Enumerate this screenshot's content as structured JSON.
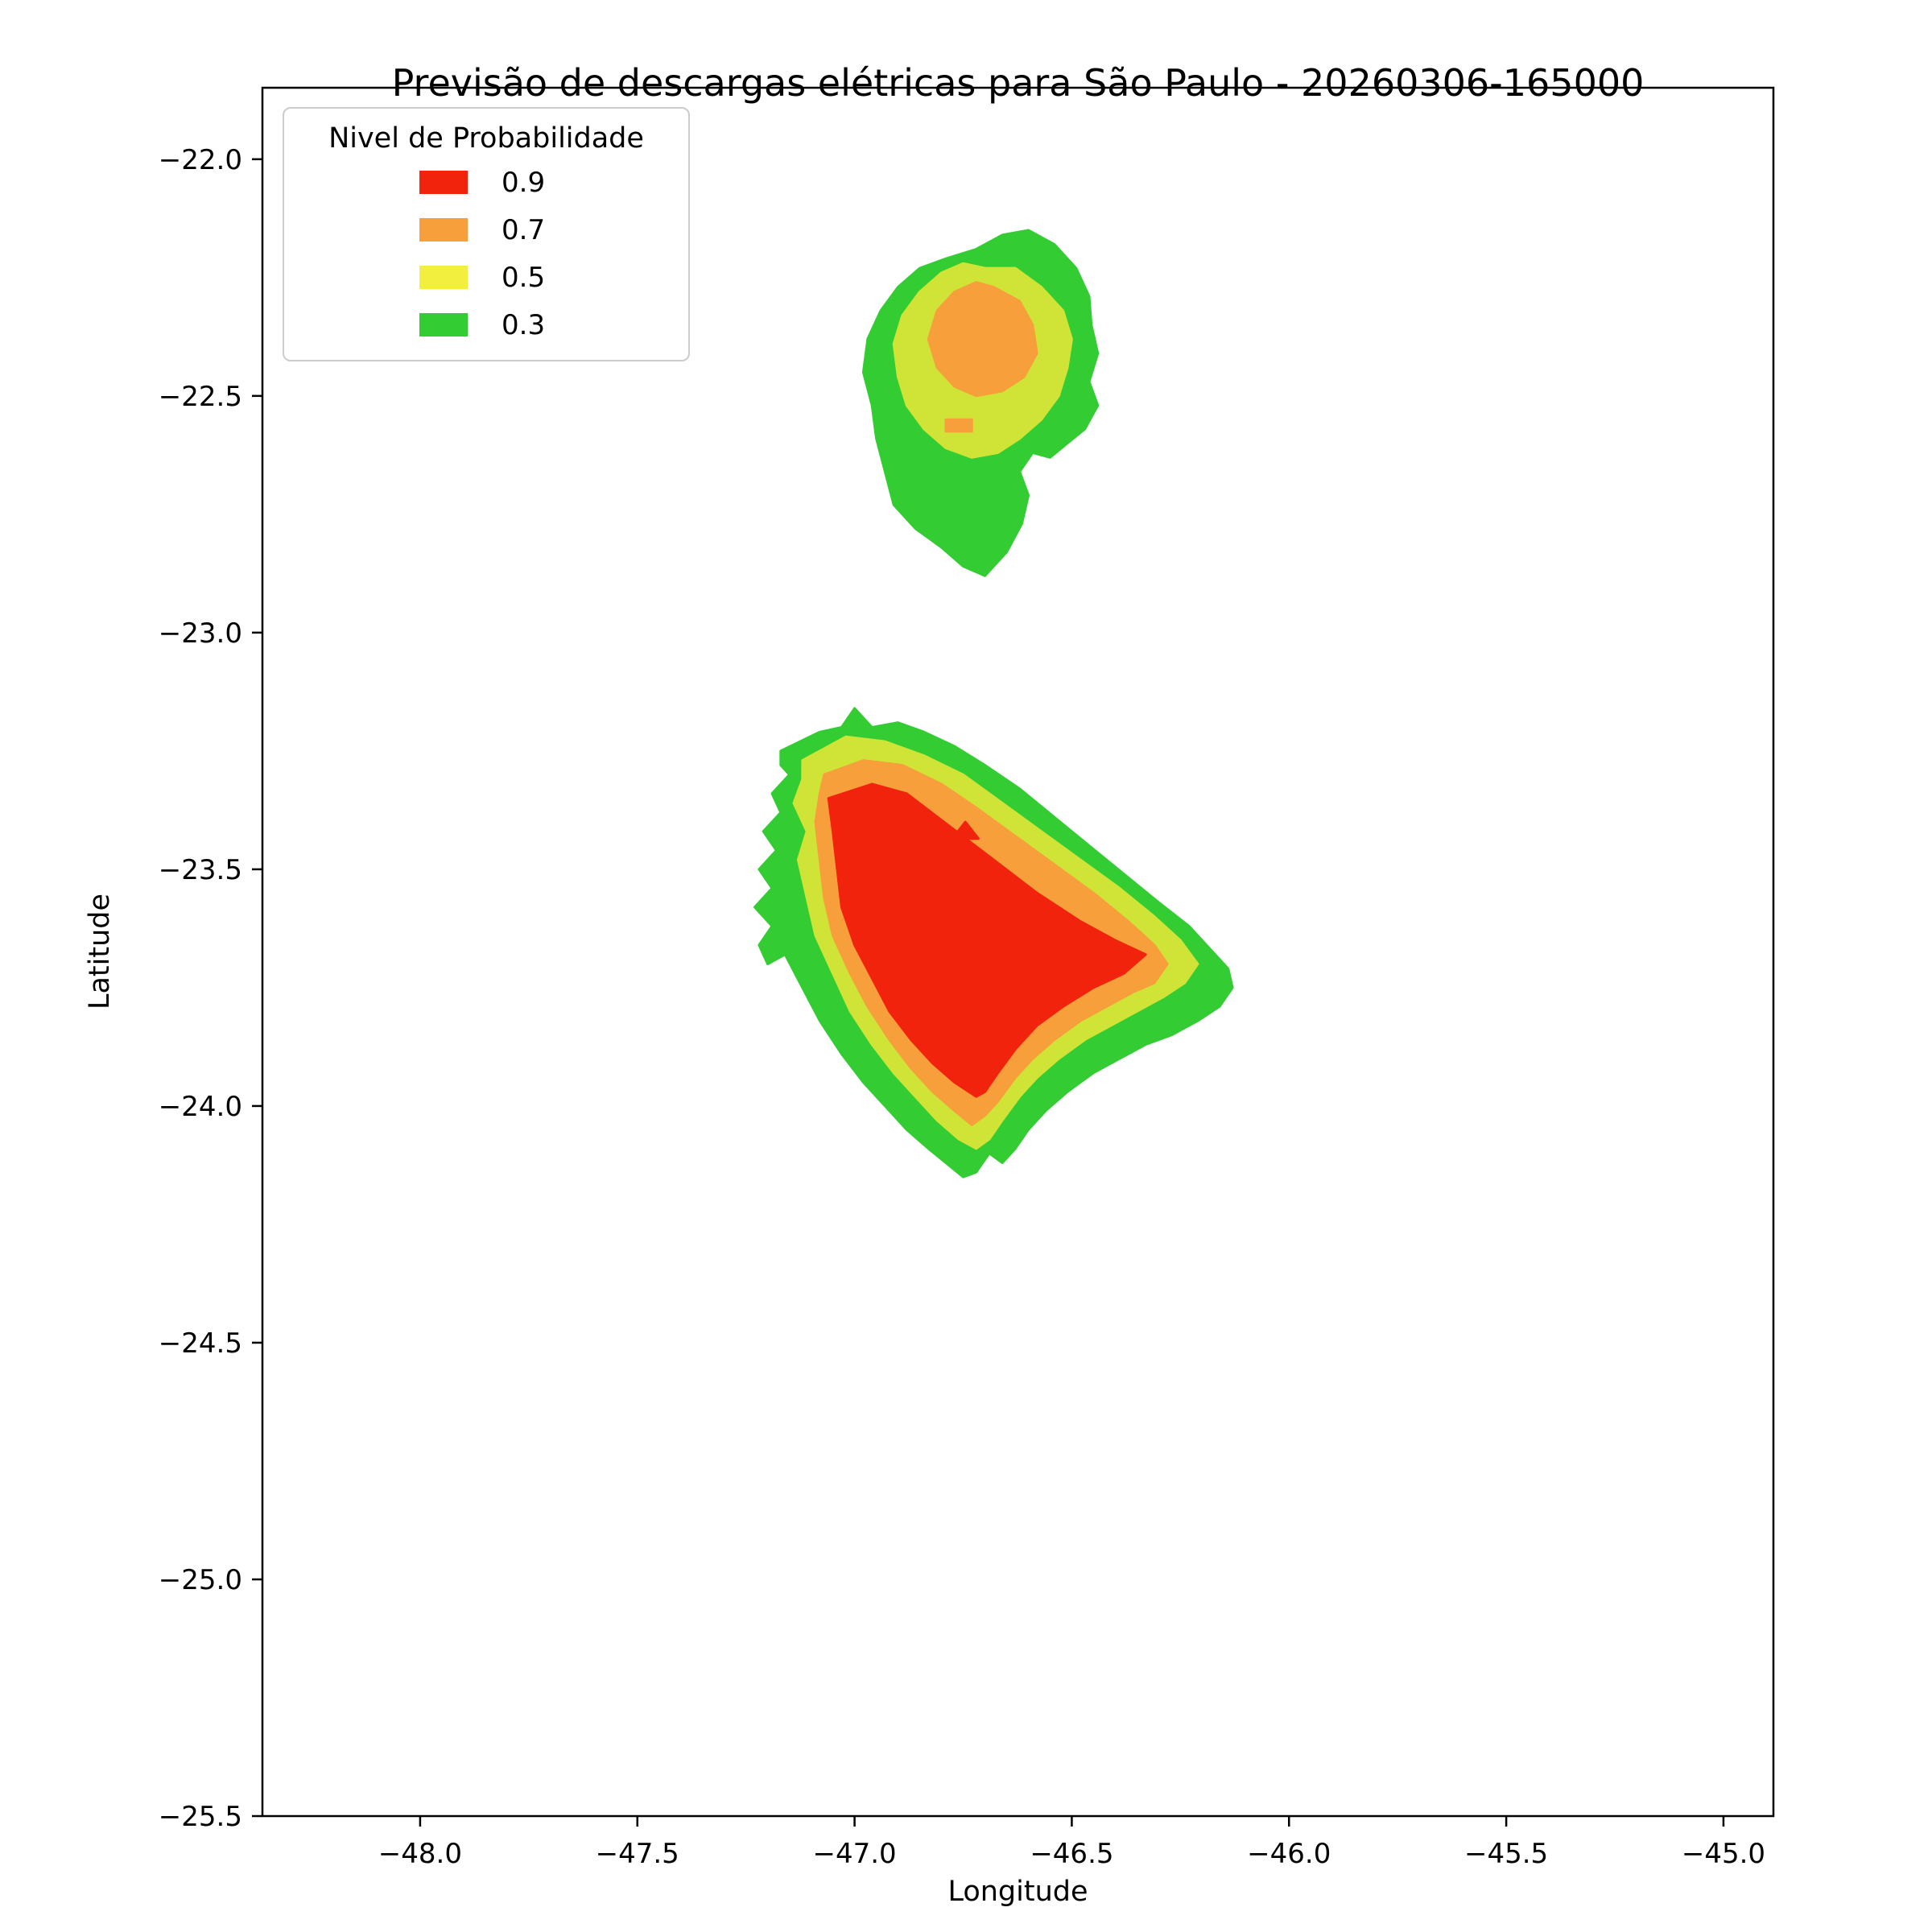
{
  "chart_data": {
    "type": "contour",
    "title": "Previsão de descargas elétricas para São Paulo - 20260306-165000",
    "xlabel": "Longitude",
    "ylabel": "Latitude",
    "xlim": [
      -48.363,
      -44.885
    ],
    "ylim": [
      -25.5,
      -21.849
    ],
    "grid": false,
    "background_color": "#ffffff",
    "axis_color": "#000000",
    "xticks": {
      "values": [
        -48.0,
        -47.5,
        -47.0,
        -46.5,
        -46.0,
        -45.5,
        -45.0
      ],
      "labels": [
        "−48.0",
        "−47.5",
        "−47.0",
        "−46.5",
        "−46.0",
        "−45.5",
        "−45.0"
      ]
    },
    "yticks": {
      "values": [
        -22.0,
        -22.5,
        -23.0,
        -23.5,
        -24.0,
        -24.5,
        -25.0,
        -25.5
      ],
      "labels": [
        "−22.0",
        "−22.5",
        "−23.0",
        "−23.5",
        "−24.0",
        "−24.5",
        "−25.0",
        "−25.5"
      ]
    },
    "levels": [
      0.3,
      0.5,
      0.7,
      0.9
    ],
    "legend": {
      "title": "Nivel de Probabilidade",
      "position": "upper left",
      "entries": [
        {
          "label": "0.9",
          "color": "#f2230d"
        },
        {
          "label": "0.7",
          "color": "#f79f3a"
        },
        {
          "label": "0.5",
          "color": "#f2ef3f"
        },
        {
          "label": "0.3",
          "color": "#33cc33"
        }
      ]
    },
    "regions": [
      {
        "name": "north-cell-level-0.3",
        "level": 0.3,
        "color": "#33cc33",
        "points": [
          [
            -46.72,
            -22.19
          ],
          [
            -46.66,
            -22.16
          ],
          [
            -46.6,
            -22.15
          ],
          [
            -46.54,
            -22.18
          ],
          [
            -46.49,
            -22.23
          ],
          [
            -46.46,
            -22.29
          ],
          [
            -46.455,
            -22.35
          ],
          [
            -46.44,
            -22.41
          ],
          [
            -46.46,
            -22.47
          ],
          [
            -46.44,
            -22.52
          ],
          [
            -46.47,
            -22.57
          ],
          [
            -46.51,
            -22.6
          ],
          [
            -46.55,
            -22.63
          ],
          [
            -46.59,
            -22.62
          ],
          [
            -46.62,
            -22.66
          ],
          [
            -46.6,
            -22.71
          ],
          [
            -46.615,
            -22.77
          ],
          [
            -46.65,
            -22.83
          ],
          [
            -46.7,
            -22.88
          ],
          [
            -46.75,
            -22.86
          ],
          [
            -46.8,
            -22.82
          ],
          [
            -46.86,
            -22.78
          ],
          [
            -46.91,
            -22.73
          ],
          [
            -46.93,
            -22.66
          ],
          [
            -46.95,
            -22.59
          ],
          [
            -46.96,
            -22.52
          ],
          [
            -46.98,
            -22.45
          ],
          [
            -46.97,
            -22.38
          ],
          [
            -46.94,
            -22.32
          ],
          [
            -46.9,
            -22.27
          ],
          [
            -46.85,
            -22.23
          ],
          [
            -46.79,
            -22.21
          ]
        ]
      },
      {
        "name": "north-cell-level-0.5",
        "level": 0.5,
        "color": "#d0e437",
        "points": [
          [
            -46.7,
            -22.23
          ],
          [
            -46.63,
            -22.23
          ],
          [
            -46.57,
            -22.27
          ],
          [
            -46.52,
            -22.32
          ],
          [
            -46.5,
            -22.38
          ],
          [
            -46.51,
            -22.44
          ],
          [
            -46.53,
            -22.5
          ],
          [
            -46.57,
            -22.55
          ],
          [
            -46.62,
            -22.59
          ],
          [
            -46.67,
            -22.62
          ],
          [
            -46.73,
            -22.63
          ],
          [
            -46.79,
            -22.61
          ],
          [
            -46.84,
            -22.57
          ],
          [
            -46.88,
            -22.52
          ],
          [
            -46.9,
            -22.46
          ],
          [
            -46.91,
            -22.39
          ],
          [
            -46.89,
            -22.33
          ],
          [
            -46.85,
            -22.28
          ],
          [
            -46.8,
            -22.24
          ],
          [
            -46.75,
            -22.22
          ]
        ]
      },
      {
        "name": "north-cell-level-0.7",
        "level": 0.7,
        "color": "#f79f3a",
        "points": [
          [
            -46.68,
            -22.27
          ],
          [
            -46.62,
            -22.3
          ],
          [
            -46.59,
            -22.35
          ],
          [
            -46.58,
            -22.41
          ],
          [
            -46.61,
            -22.46
          ],
          [
            -46.66,
            -22.49
          ],
          [
            -46.72,
            -22.5
          ],
          [
            -46.77,
            -22.48
          ],
          [
            -46.81,
            -22.44
          ],
          [
            -46.83,
            -22.38
          ],
          [
            -46.81,
            -22.32
          ],
          [
            -46.77,
            -22.28
          ],
          [
            -46.72,
            -22.26
          ]
        ]
      },
      {
        "name": "north-cell-level-0.7-sliver",
        "level": 0.7,
        "color": "#f79f3a",
        "points": [
          [
            -46.79,
            -22.55
          ],
          [
            -46.73,
            -22.55
          ],
          [
            -46.73,
            -22.575
          ],
          [
            -46.79,
            -22.575
          ]
        ]
      },
      {
        "name": "south-cell-level-0.3",
        "level": 0.3,
        "color": "#33cc33",
        "points": [
          [
            -47.17,
            -23.25
          ],
          [
            -47.08,
            -23.21
          ],
          [
            -47.03,
            -23.2
          ],
          [
            -47.0,
            -23.16
          ],
          [
            -46.96,
            -23.2
          ],
          [
            -46.9,
            -23.19
          ],
          [
            -46.84,
            -23.21
          ],
          [
            -46.77,
            -23.24
          ],
          [
            -46.7,
            -23.28
          ],
          [
            -46.62,
            -23.33
          ],
          [
            -46.54,
            -23.39
          ],
          [
            -46.46,
            -23.45
          ],
          [
            -46.38,
            -23.51
          ],
          [
            -46.3,
            -23.57
          ],
          [
            -46.23,
            -23.62
          ],
          [
            -46.18,
            -23.67
          ],
          [
            -46.14,
            -23.71
          ],
          [
            -46.13,
            -23.75
          ],
          [
            -46.16,
            -23.79
          ],
          [
            -46.21,
            -23.82
          ],
          [
            -46.27,
            -23.85
          ],
          [
            -46.33,
            -23.87
          ],
          [
            -46.39,
            -23.9
          ],
          [
            -46.45,
            -23.93
          ],
          [
            -46.51,
            -23.97
          ],
          [
            -46.56,
            -24.01
          ],
          [
            -46.6,
            -24.05
          ],
          [
            -46.63,
            -24.09
          ],
          [
            -46.66,
            -24.12
          ],
          [
            -46.69,
            -24.1
          ],
          [
            -46.72,
            -24.14
          ],
          [
            -46.75,
            -24.15
          ],
          [
            -46.79,
            -24.12
          ],
          [
            -46.83,
            -24.09
          ],
          [
            -46.88,
            -24.05
          ],
          [
            -46.93,
            -24.0
          ],
          [
            -46.98,
            -23.95
          ],
          [
            -47.03,
            -23.89
          ],
          [
            -47.08,
            -23.82
          ],
          [
            -47.12,
            -23.75
          ],
          [
            -47.16,
            -23.68
          ],
          [
            -47.2,
            -23.7
          ],
          [
            -47.22,
            -23.66
          ],
          [
            -47.19,
            -23.62
          ],
          [
            -47.23,
            -23.58
          ],
          [
            -47.19,
            -23.54
          ],
          [
            -47.22,
            -23.5
          ],
          [
            -47.18,
            -23.46
          ],
          [
            -47.21,
            -23.42
          ],
          [
            -47.17,
            -23.38
          ],
          [
            -47.19,
            -23.34
          ],
          [
            -47.15,
            -23.3
          ],
          [
            -47.17,
            -23.28
          ]
        ]
      },
      {
        "name": "south-cell-level-0.5",
        "level": 0.5,
        "color": "#d0e437",
        "points": [
          [
            -47.12,
            -23.27
          ],
          [
            -47.02,
            -23.22
          ],
          [
            -46.93,
            -23.23
          ],
          [
            -46.84,
            -23.26
          ],
          [
            -46.75,
            -23.3
          ],
          [
            -46.66,
            -23.36
          ],
          [
            -46.57,
            -23.42
          ],
          [
            -46.48,
            -23.48
          ],
          [
            -46.39,
            -23.54
          ],
          [
            -46.31,
            -23.6
          ],
          [
            -46.25,
            -23.65
          ],
          [
            -46.21,
            -23.7
          ],
          [
            -46.24,
            -23.74
          ],
          [
            -46.29,
            -23.77
          ],
          [
            -46.35,
            -23.8
          ],
          [
            -46.41,
            -23.83
          ],
          [
            -46.47,
            -23.86
          ],
          [
            -46.53,
            -23.9
          ],
          [
            -46.58,
            -23.94
          ],
          [
            -46.62,
            -23.98
          ],
          [
            -46.66,
            -24.03
          ],
          [
            -46.69,
            -24.07
          ],
          [
            -46.72,
            -24.09
          ],
          [
            -46.76,
            -24.07
          ],
          [
            -46.81,
            -24.03
          ],
          [
            -46.86,
            -23.98
          ],
          [
            -46.91,
            -23.93
          ],
          [
            -46.96,
            -23.87
          ],
          [
            -47.01,
            -23.8
          ],
          [
            -47.05,
            -23.72
          ],
          [
            -47.09,
            -23.64
          ],
          [
            -47.11,
            -23.56
          ],
          [
            -47.13,
            -23.48
          ],
          [
            -47.11,
            -23.42
          ],
          [
            -47.14,
            -23.36
          ],
          [
            -47.12,
            -23.31
          ]
        ]
      },
      {
        "name": "south-cell-level-0.7",
        "level": 0.7,
        "color": "#f79f3a",
        "points": [
          [
            -47.07,
            -23.3
          ],
          [
            -46.98,
            -23.27
          ],
          [
            -46.89,
            -23.28
          ],
          [
            -46.8,
            -23.32
          ],
          [
            -46.72,
            -23.37
          ],
          [
            -46.63,
            -23.43
          ],
          [
            -46.54,
            -23.49
          ],
          [
            -46.45,
            -23.55
          ],
          [
            -46.37,
            -23.61
          ],
          [
            -46.31,
            -23.66
          ],
          [
            -46.28,
            -23.7
          ],
          [
            -46.31,
            -23.74
          ],
          [
            -46.36,
            -23.76
          ],
          [
            -46.42,
            -23.79
          ],
          [
            -46.48,
            -23.82
          ],
          [
            -46.54,
            -23.86
          ],
          [
            -46.59,
            -23.9
          ],
          [
            -46.63,
            -23.94
          ],
          [
            -46.67,
            -23.99
          ],
          [
            -46.7,
            -24.02
          ],
          [
            -46.73,
            -24.04
          ],
          [
            -46.77,
            -24.01
          ],
          [
            -46.82,
            -23.97
          ],
          [
            -46.87,
            -23.92
          ],
          [
            -46.92,
            -23.86
          ],
          [
            -46.97,
            -23.79
          ],
          [
            -47.01,
            -23.72
          ],
          [
            -47.05,
            -23.64
          ],
          [
            -47.07,
            -23.56
          ],
          [
            -47.08,
            -23.48
          ],
          [
            -47.09,
            -23.4
          ],
          [
            -47.08,
            -23.34
          ]
        ]
      },
      {
        "name": "south-cell-level-0.9",
        "level": 0.9,
        "color": "#f2230d",
        "points": [
          [
            -47.06,
            -23.35
          ],
          [
            -46.96,
            -23.32
          ],
          [
            -46.88,
            -23.34
          ],
          [
            -46.78,
            -23.41
          ],
          [
            -46.68,
            -23.48
          ],
          [
            -46.58,
            -23.55
          ],
          [
            -46.48,
            -23.61
          ],
          [
            -46.4,
            -23.65
          ],
          [
            -46.33,
            -23.68
          ],
          [
            -46.38,
            -23.72
          ],
          [
            -46.45,
            -23.75
          ],
          [
            -46.52,
            -23.79
          ],
          [
            -46.58,
            -23.83
          ],
          [
            -46.63,
            -23.88
          ],
          [
            -46.67,
            -23.93
          ],
          [
            -46.7,
            -23.97
          ],
          [
            -46.72,
            -23.98
          ],
          [
            -46.77,
            -23.95
          ],
          [
            -46.82,
            -23.91
          ],
          [
            -46.87,
            -23.86
          ],
          [
            -46.92,
            -23.8
          ],
          [
            -46.96,
            -23.73
          ],
          [
            -47.0,
            -23.66
          ],
          [
            -47.03,
            -23.58
          ],
          [
            -47.04,
            -23.5
          ],
          [
            -47.05,
            -23.42
          ]
        ]
      },
      {
        "name": "south-cell-level-0.9-speck",
        "level": 0.9,
        "color": "#f2230d",
        "points": [
          [
            -46.775,
            -23.435
          ],
          [
            -46.715,
            -23.435
          ],
          [
            -46.745,
            -23.4
          ]
        ]
      }
    ]
  }
}
